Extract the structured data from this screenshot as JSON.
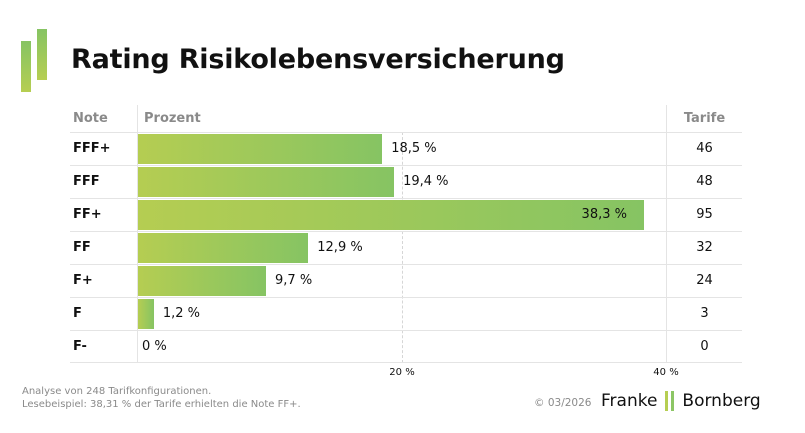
{
  "title": "Rating Risikolebensversicherung",
  "columns": {
    "note": "Note",
    "percent": "Prozent",
    "tarife": "Tarife"
  },
  "colors": {
    "bar_start": "#b5cd52",
    "bar_end": "#86c463"
  },
  "chart_data": {
    "type": "bar",
    "orientation": "horizontal",
    "title": "Rating Risikolebensversicherung",
    "categories": [
      "FFF+",
      "FFF",
      "FF+",
      "FF",
      "F+",
      "F",
      "F-"
    ],
    "values": [
      18.5,
      19.4,
      38.3,
      12.9,
      9.7,
      1.2,
      0
    ],
    "value_labels": [
      "18,5 %",
      "19,4 %",
      "38,3 %",
      "12,9 %",
      "9,7 %",
      "1,2 %",
      "0 %"
    ],
    "counts": [
      46,
      48,
      95,
      32,
      24,
      3,
      0
    ],
    "xlabel": "Prozent",
    "xlim": [
      0,
      40
    ],
    "xticks": [
      20,
      40
    ],
    "xtick_labels": [
      "20 %",
      "40 %"
    ],
    "grid": true
  },
  "footer": {
    "line1": "Analyse von 248 Tarifkonfigurationen.",
    "line2": "Lesebeispiel: 38,31 % der Tarife erhielten die Note FF+.",
    "copyright": "© 03/2026",
    "brand_left": "Franke",
    "brand_right": "Bornberg"
  }
}
